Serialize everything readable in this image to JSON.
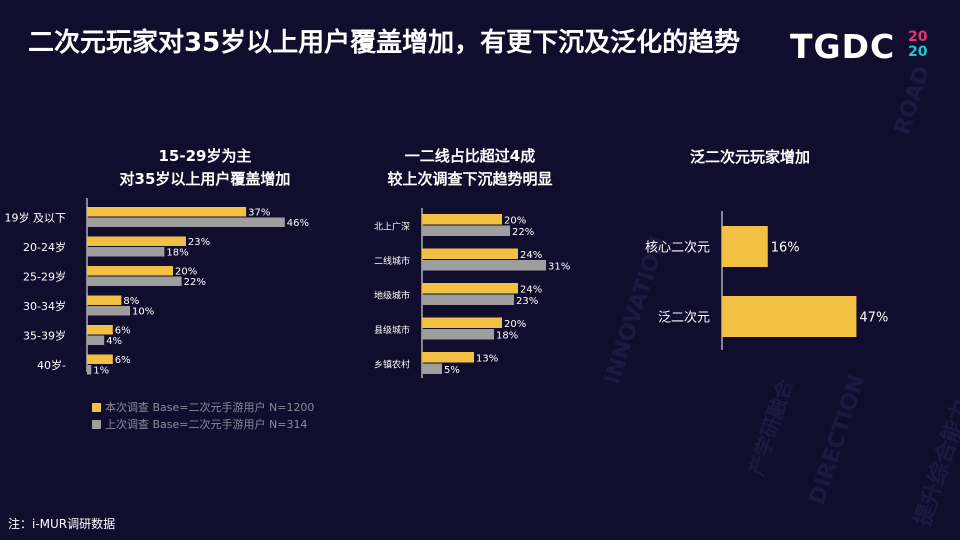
{
  "title": "二次元玩家对35岁以上用户覆盖增加，有更下沉及泛化的趋势",
  "logo": {
    "text": "TGDC",
    "year_top": "20",
    "year_bottom": "20"
  },
  "background_words": [
    "INNOVATION",
    "DIRECTION",
    "ROAD",
    "产学研融合",
    "提升综合能力"
  ],
  "colors": {
    "background": "#110d2c",
    "current": "#f2c144",
    "previous": "#9e9e9e",
    "logo_year_top": "#e8336d",
    "logo_year_bottom": "#19c6d1"
  },
  "legend": {
    "current": "本次调查 Base=二次元手游用户 N=1200",
    "previous": "上次调查 Base=二次元手游用户 N=314"
  },
  "footnote": "注：i-MUR调研数据",
  "chart_data": [
    {
      "type": "bar",
      "orientation": "horizontal",
      "title_lines": [
        "15-29岁为主",
        "对35岁以上用户覆盖增加"
      ],
      "categories": [
        "19岁 及以下",
        "20-24岁",
        "25-29岁",
        "30-34岁",
        "35-39岁",
        "40岁-"
      ],
      "series": [
        {
          "name": "本次调查",
          "values": [
            37,
            23,
            20,
            8,
            6,
            6
          ],
          "labels": [
            "37%",
            "23%",
            "20%",
            "8%",
            "6%",
            "6%"
          ]
        },
        {
          "name": "上次调查",
          "values": [
            46,
            18,
            22,
            10,
            4,
            1
          ],
          "labels": [
            "46%",
            "18%",
            "22%",
            "10%",
            "4%",
            "1%"
          ]
        }
      ]
    },
    {
      "type": "bar",
      "orientation": "horizontal",
      "title_lines": [
        "一二线占比超过4成",
        "较上次调查下沉趋势明显"
      ],
      "categories": [
        "北上广深",
        "二线城市",
        "地级城市",
        "县级城市",
        "乡镇农村"
      ],
      "series": [
        {
          "name": "本次调查",
          "values": [
            20,
            24,
            24,
            20,
            13
          ],
          "labels": [
            "20%",
            "24%",
            "24%",
            "20%",
            "13%"
          ]
        },
        {
          "name": "上次调查",
          "values": [
            22,
            31,
            23,
            18,
            5
          ],
          "labels": [
            "22%",
            "31%",
            "23%",
            "18%",
            "5%"
          ]
        }
      ]
    },
    {
      "type": "bar",
      "orientation": "horizontal",
      "title_lines": [
        "泛二次元玩家增加"
      ],
      "categories": [
        "核心二次元",
        "泛二次元"
      ],
      "series": [
        {
          "name": "本次调查",
          "values": [
            16,
            47
          ],
          "labels": [
            "16%",
            "47%"
          ]
        }
      ]
    }
  ]
}
